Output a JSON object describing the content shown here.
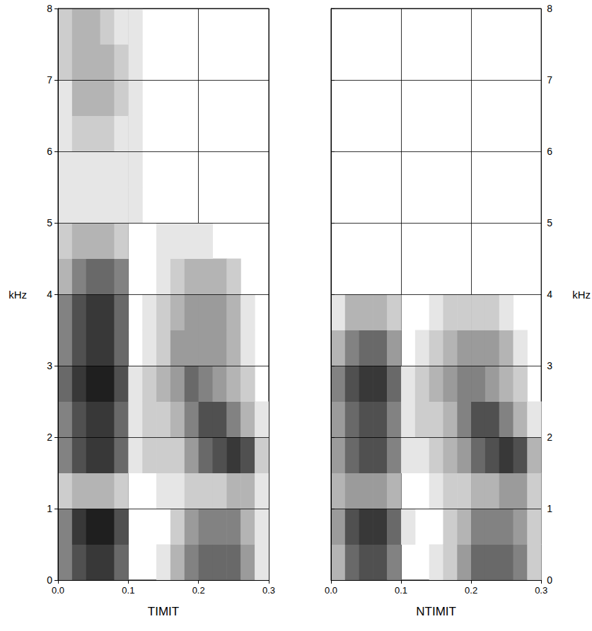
{
  "chart_data": [
    {
      "type": "heatmap",
      "title": "TIMIT",
      "ylabel": "kHz",
      "grid": true,
      "color": "#000000",
      "time_bins": [
        0,
        0.02,
        0.04,
        0.06,
        0.08,
        0.1,
        0.12,
        0.14,
        0.16,
        0.18,
        0.2,
        0.22,
        0.24,
        0.26,
        0.28,
        0.3
      ],
      "freq_bins": [
        0,
        0.5,
        1,
        1.5,
        2,
        2.5,
        3,
        3.5,
        4,
        4.5,
        5,
        5.5,
        6,
        6.5,
        7,
        7.5,
        8
      ],
      "color_range": [
        0,
        9
      ],
      "cells": [
        [
          5,
          7,
          8,
          8,
          6,
          0,
          0,
          1,
          3,
          5,
          6,
          6,
          6,
          4,
          1
        ],
        [
          5,
          8,
          9,
          9,
          7,
          0,
          0,
          0,
          2,
          4,
          5,
          5,
          5,
          3,
          1
        ],
        [
          2,
          3,
          3,
          3,
          2,
          0,
          0,
          1,
          1,
          2,
          2,
          2,
          3,
          3,
          1
        ],
        [
          5,
          7,
          8,
          8,
          6,
          1,
          2,
          2,
          2,
          4,
          6,
          7,
          8,
          7,
          2
        ],
        [
          5,
          7,
          8,
          8,
          6,
          1,
          2,
          2,
          3,
          5,
          7,
          7,
          5,
          3,
          1
        ],
        [
          6,
          8,
          9,
          9,
          7,
          1,
          2,
          3,
          4,
          6,
          5,
          4,
          3,
          2,
          0
        ],
        [
          5,
          7,
          8,
          8,
          6,
          0,
          1,
          2,
          4,
          4,
          4,
          4,
          3,
          1,
          0
        ],
        [
          5,
          7,
          8,
          8,
          6,
          0,
          1,
          2,
          3,
          4,
          4,
          4,
          3,
          1,
          0
        ],
        [
          3,
          5,
          6,
          6,
          5,
          0,
          0,
          1,
          2,
          3,
          3,
          3,
          2,
          0,
          0
        ],
        [
          2,
          3,
          3,
          3,
          2,
          0,
          0,
          1,
          1,
          1,
          1,
          0,
          0,
          0,
          0
        ],
        [
          1,
          1,
          1,
          1,
          1,
          1,
          0,
          0,
          0,
          0,
          0,
          0,
          0,
          0,
          0
        ],
        [
          1,
          1,
          1,
          1,
          1,
          1,
          0,
          0,
          0,
          0,
          0,
          0,
          0,
          0,
          0
        ],
        [
          1,
          2,
          2,
          2,
          1,
          1,
          0,
          0,
          0,
          0,
          0,
          0,
          0,
          0,
          0
        ],
        [
          1,
          3,
          3,
          3,
          2,
          1,
          0,
          0,
          0,
          0,
          0,
          0,
          0,
          0,
          0
        ],
        [
          2,
          3,
          3,
          3,
          2,
          1,
          0,
          0,
          0,
          0,
          0,
          0,
          0,
          0,
          0
        ],
        [
          2,
          3,
          3,
          2,
          1,
          1,
          0,
          0,
          0,
          0,
          0,
          0,
          0,
          0,
          0
        ]
      ],
      "xlim": [
        0,
        0.3
      ],
      "xticks": [
        {
          "value": 0,
          "label": "0.0"
        },
        0.1,
        0.2,
        0.3
      ],
      "ylim": [
        0,
        8
      ],
      "yticks": [
        0,
        1,
        2,
        3,
        4,
        5,
        6,
        7,
        8
      ]
    },
    {
      "type": "heatmap",
      "title": "NTIMIT",
      "ylabel": "kHz",
      "grid": true,
      "color": "#000000",
      "time_bins": [
        0,
        0.02,
        0.04,
        0.06,
        0.08,
        0.1,
        0.12,
        0.14,
        0.16,
        0.18,
        0.2,
        0.22,
        0.24,
        0.26,
        0.28,
        0.3
      ],
      "freq_bins": [
        0,
        0.5,
        1,
        1.5,
        2,
        2.5,
        3,
        3.5,
        4,
        4.5,
        5,
        5.5,
        6,
        6.5,
        7,
        7.5,
        8
      ],
      "color_range": [
        0,
        9
      ],
      "cells": [
        [
          3,
          6,
          7,
          7,
          5,
          0,
          0,
          1,
          2,
          4,
          6,
          6,
          6,
          5,
          2
        ],
        [
          4,
          7,
          8,
          8,
          6,
          1,
          0,
          0,
          2,
          3,
          5,
          5,
          5,
          4,
          2
        ],
        [
          3,
          4,
          4,
          4,
          3,
          0,
          0,
          1,
          2,
          2,
          3,
          3,
          4,
          4,
          2
        ],
        [
          4,
          6,
          7,
          7,
          5,
          1,
          1,
          2,
          3,
          4,
          6,
          7,
          8,
          7,
          3
        ],
        [
          4,
          6,
          7,
          7,
          5,
          1,
          2,
          2,
          3,
          5,
          7,
          7,
          5,
          3,
          1
        ],
        [
          5,
          7,
          8,
          8,
          6,
          1,
          2,
          3,
          4,
          5,
          5,
          4,
          3,
          2,
          0
        ],
        [
          3,
          5,
          6,
          6,
          4,
          0,
          1,
          2,
          3,
          4,
          4,
          4,
          3,
          1,
          0
        ],
        [
          1,
          3,
          3,
          3,
          2,
          0,
          0,
          1,
          2,
          2,
          2,
          2,
          1,
          0,
          0
        ],
        [
          0,
          0,
          0,
          0,
          0,
          0,
          0,
          0,
          0,
          0,
          0,
          0,
          0,
          0,
          0
        ],
        [
          0,
          0,
          0,
          0,
          0,
          0,
          0,
          0,
          0,
          0,
          0,
          0,
          0,
          0,
          0
        ],
        [
          0,
          0,
          0,
          0,
          0,
          0,
          0,
          0,
          0,
          0,
          0,
          0,
          0,
          0,
          0
        ],
        [
          0,
          0,
          0,
          0,
          0,
          0,
          0,
          0,
          0,
          0,
          0,
          0,
          0,
          0,
          0
        ],
        [
          0,
          0,
          0,
          0,
          0,
          0,
          0,
          0,
          0,
          0,
          0,
          0,
          0,
          0,
          0
        ],
        [
          0,
          0,
          0,
          0,
          0,
          0,
          0,
          0,
          0,
          0,
          0,
          0,
          0,
          0,
          0
        ],
        [
          0,
          0,
          0,
          0,
          0,
          0,
          0,
          0,
          0,
          0,
          0,
          0,
          0,
          0,
          0
        ],
        [
          0,
          0,
          0,
          0,
          0,
          0,
          0,
          0,
          0,
          0,
          0,
          0,
          0,
          0,
          0
        ]
      ],
      "xlim": [
        0,
        0.3
      ],
      "xticks": [
        {
          "value": 0,
          "label": "0.0"
        },
        0.1,
        0.2,
        0.3
      ],
      "ylim": [
        0,
        8
      ],
      "yticks": [
        0,
        1,
        2,
        3,
        4,
        5,
        6,
        7,
        8
      ]
    }
  ]
}
